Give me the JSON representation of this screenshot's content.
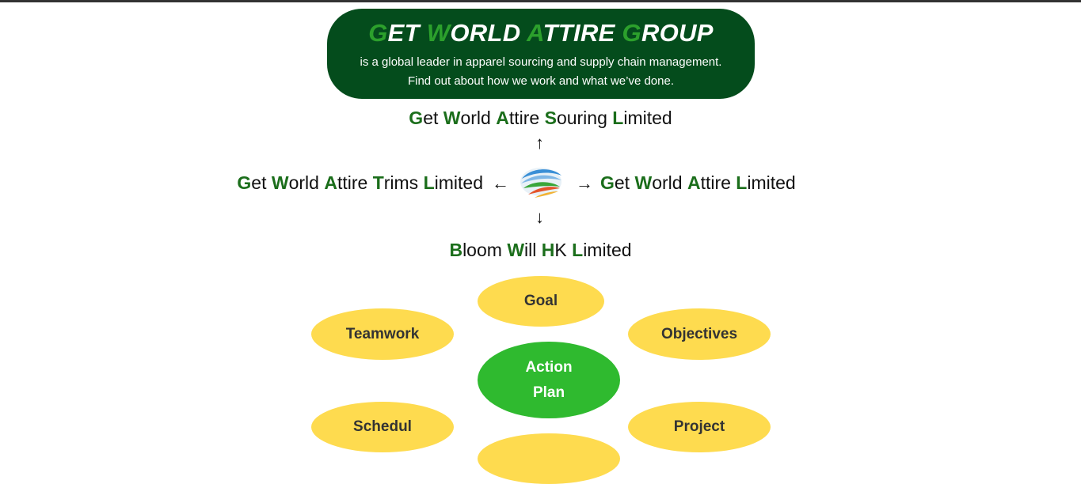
{
  "banner": {
    "title_words": [
      {
        "initial": "G",
        "rest": "ET"
      },
      {
        "initial": "W",
        "rest": "ORLD"
      },
      {
        "initial": "A",
        "rest": "TTIRE"
      },
      {
        "initial": "G",
        "rest": "ROUP"
      }
    ],
    "subtitle_line1": "is a global leader in apparel sourcing and supply chain management.",
    "subtitle_line2": "Find out about how we work and what we’ve done."
  },
  "companies": {
    "top": [
      {
        "initial": "G",
        "rest": "et"
      },
      {
        "initial": "W",
        "rest": "orld"
      },
      {
        "initial": "A",
        "rest": "ttire"
      },
      {
        "initial": "S",
        "rest": "ouring"
      },
      {
        "initial": "L",
        "rest": "imited"
      }
    ],
    "left": [
      {
        "initial": "G",
        "rest": "et"
      },
      {
        "initial": "W",
        "rest": "orld"
      },
      {
        "initial": "A",
        "rest": "ttire"
      },
      {
        "initial": "T",
        "rest": "rims"
      },
      {
        "initial": "L",
        "rest": "imited"
      }
    ],
    "right": [
      {
        "initial": "G",
        "rest": "et"
      },
      {
        "initial": "W",
        "rest": "orld"
      },
      {
        "initial": "A",
        "rest": "ttire"
      },
      {
        "initial": "L",
        "rest": "imited"
      }
    ],
    "bottom": [
      {
        "initial": "B",
        "rest": "loom"
      },
      {
        "initial": "W",
        "rest": "ill"
      },
      {
        "initial": "H",
        "rest": "K"
      },
      {
        "initial": "L",
        "rest": "imited"
      }
    ]
  },
  "arrows": {
    "up": "↑",
    "down": "↓",
    "left": "←",
    "right": "→"
  },
  "logo_icon": "globe-swoosh-icon",
  "ovals": {
    "goal": "Goal",
    "teamwork": "Teamwork",
    "objectives": "Objectives",
    "schedule": "Schedul",
    "project": "Project"
  },
  "center": {
    "line1": "Action",
    "line2": "Plan"
  },
  "colors": {
    "banner_bg": "#044c1c",
    "highlight_green": "#2ca02c",
    "initial_green": "#1b6e1b",
    "oval_yellow": "#fedb4f",
    "center_green": "#2fba2f"
  }
}
